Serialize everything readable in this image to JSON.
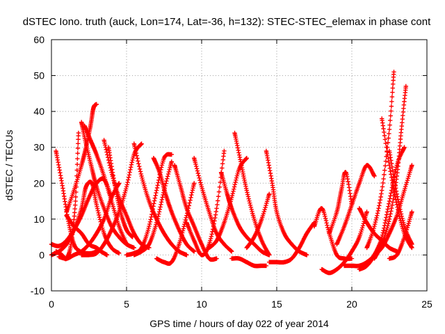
{
  "chart_data": {
    "type": "scatter",
    "title": "dSTEC Iono. truth (auck, Lon=174, Lat=-36, h=132): STEC-STEC_elemax in phase cont",
    "xlabel": "GPS time / hours of day 022 of year 2014",
    "ylabel": "dSTEC  / TECUs",
    "xlim": [
      0,
      25
    ],
    "ylim": [
      -10,
      60
    ],
    "xticks": [
      "0",
      "5",
      "10",
      "15",
      "20",
      "25"
    ],
    "yticks": [
      "-10",
      "0",
      "10",
      "20",
      "30",
      "40",
      "50",
      "60"
    ],
    "grid": true,
    "legend": "none",
    "marker": "plus",
    "series_color": "#ff0000",
    "series": [
      {
        "x": [
          0.0,
          0.5,
          1.0,
          1.5,
          2.0,
          2.5,
          3.0,
          3.5,
          4.0
        ],
        "y": [
          3,
          2.5,
          4,
          7,
          11,
          16,
          20,
          21,
          16
        ]
      },
      {
        "x": [
          0.3,
          0.7,
          1.1,
          1.5,
          1.9,
          2.3,
          2.7,
          3.0
        ],
        "y": [
          29,
          20,
          10,
          3,
          1,
          0.5,
          0.5,
          1
        ]
      },
      {
        "x": [
          0.0,
          0.5,
          1.0,
          1.5,
          2.0,
          2.3,
          2.7,
          3.0,
          3.5,
          4.0,
          4.5
        ],
        "y": [
          0,
          1,
          3,
          7,
          13,
          19,
          20,
          14,
          6,
          2,
          0.5
        ]
      },
      {
        "x": [
          0.3,
          0.7,
          1.0,
          1.3,
          1.6,
          1.8
        ],
        "y": [
          1,
          0,
          -1,
          3,
          15,
          34
        ]
      },
      {
        "x": [
          0.5,
          1.0,
          1.5,
          2.0,
          2.5,
          3.0,
          3.5,
          4.0,
          4.5
        ],
        "y": [
          -0.5,
          -1,
          0,
          1,
          3,
          6,
          10,
          16,
          20
        ]
      },
      {
        "x": [
          2.0,
          2.3,
          2.7,
          3.0,
          3.5,
          4.0,
          4.5,
          5.0,
          5.5
        ],
        "y": [
          37,
          31,
          24,
          19,
          13,
          8,
          5,
          3,
          2
        ]
      },
      {
        "x": [
          1.0,
          1.5,
          2.0,
          2.3,
          2.6,
          2.8,
          3.0
        ],
        "y": [
          12,
          18,
          25,
          30,
          36,
          41,
          42
        ]
      },
      {
        "x": [
          2.2,
          2.6,
          3.0,
          3.5,
          4.0,
          4.5,
          5.0
        ],
        "y": [
          36,
          32,
          28,
          22,
          15,
          8,
          3
        ]
      },
      {
        "x": [
          1.0,
          1.5,
          2.0,
          2.5,
          3.0,
          3.3,
          3.7
        ],
        "y": [
          11,
          8,
          6,
          3,
          2,
          1,
          0
        ]
      },
      {
        "x": [
          3.5,
          4.0,
          4.5,
          5.0,
          5.5,
          6.0,
          6.5
        ],
        "y": [
          32,
          23,
          16,
          11,
          6,
          3,
          2
        ]
      },
      {
        "x": [
          3.8,
          4.2,
          4.6,
          5.0,
          5.4
        ],
        "y": [
          30,
          20,
          12,
          7,
          5
        ]
      },
      {
        "x": [
          2.0,
          2.5,
          3.0,
          3.5,
          4.0,
          4.5,
          5.0,
          5.5,
          6.0
        ],
        "y": [
          0,
          0,
          0.5,
          3,
          7,
          12,
          19,
          28,
          31
        ]
      },
      {
        "x": [
          5.5,
          6.0,
          6.5,
          7.0,
          7.5,
          8.0,
          8.5,
          9.0
        ],
        "y": [
          31,
          22,
          15,
          10,
          6,
          3,
          1,
          0
        ]
      },
      {
        "x": [
          5.0,
          5.5,
          6.0,
          6.5,
          7.0,
          7.5,
          8.0
        ],
        "y": [
          0,
          0.5,
          2,
          8,
          18,
          27,
          28
        ]
      },
      {
        "x": [
          6.8,
          7.2,
          7.6,
          8.0,
          8.5,
          9.0,
          9.5
        ],
        "y": [
          27,
          23,
          17,
          12,
          7,
          3,
          1
        ]
      },
      {
        "x": [
          5.5,
          6.0,
          6.5,
          7.0,
          7.5,
          8.0
        ],
        "y": [
          0,
          1,
          3,
          9,
          18,
          26
        ]
      },
      {
        "x": [
          8.2,
          8.6,
          9.0,
          9.5,
          10.0,
          10.5,
          11.0
        ],
        "y": [
          25,
          19,
          13,
          8,
          3,
          -1,
          -1
        ]
      },
      {
        "x": [
          7.0,
          7.5,
          8.0,
          8.5,
          9.0,
          9.5
        ],
        "y": [
          -1,
          -2,
          -2,
          3,
          11,
          20
        ]
      },
      {
        "x": [
          9.5,
          10.0,
          10.5,
          11.0,
          11.5,
          12.0
        ],
        "y": [
          27,
          19,
          12,
          6,
          3,
          1
        ]
      },
      {
        "x": [
          9.0,
          9.5,
          10.0,
          10.5,
          11.0,
          11.5
        ],
        "y": [
          9,
          4,
          0,
          3,
          13,
          29
        ]
      },
      {
        "x": [
          11.3,
          11.7,
          12.0,
          12.5,
          13.0,
          13.5,
          14.0,
          14.5
        ],
        "y": [
          23,
          17,
          13,
          8,
          5,
          3,
          1,
          0
        ]
      },
      {
        "x": [
          10.5,
          11.0,
          11.5,
          12.0,
          12.5,
          13.0
        ],
        "y": [
          2,
          4,
          9,
          16,
          24,
          27
        ]
      },
      {
        "x": [
          12.2,
          12.6,
          13.0,
          13.5,
          14.0,
          14.5
        ],
        "y": [
          34,
          26,
          18,
          10,
          4,
          0
        ]
      },
      {
        "x": [
          12.0,
          12.5,
          13.0,
          13.5,
          14.0,
          14.3
        ],
        "y": [
          -1,
          -1,
          -2,
          -3,
          -3,
          -3
        ]
      },
      {
        "x": [
          13.0,
          13.5,
          14.0,
          14.5
        ],
        "y": [
          2,
          5,
          10,
          17
        ]
      },
      {
        "x": [
          14.3,
          14.7,
          15.0,
          15.5,
          16.0,
          16.5,
          17.0
        ],
        "y": [
          29,
          20,
          12,
          6,
          3,
          1,
          0
        ]
      },
      {
        "x": [
          14.5,
          15.0,
          15.5,
          16.0,
          16.5,
          17.0,
          17.5
        ],
        "y": [
          -2,
          -2,
          -2,
          -1,
          2,
          6,
          9
        ]
      },
      {
        "x": [
          17.5,
          18.0,
          18.5,
          19.0,
          19.5,
          20.0
        ],
        "y": [
          8,
          13,
          6,
          0,
          -1,
          -1
        ]
      },
      {
        "x": [
          18.0,
          18.5,
          19.0,
          19.5,
          20.0,
          20.5,
          21.0
        ],
        "y": [
          -4,
          -5,
          -4,
          -2,
          1,
          5,
          12
        ]
      },
      {
        "x": [
          18.5,
          19.0,
          19.3,
          19.6,
          20.0
        ],
        "y": [
          6,
          12,
          18,
          23,
          14
        ]
      },
      {
        "x": [
          19.0,
          19.5,
          20.0,
          20.5,
          21.0,
          21.5
        ],
        "y": [
          3,
          8,
          14,
          20,
          25,
          22
        ]
      },
      {
        "x": [
          19.5,
          20.0,
          20.5,
          21.0,
          21.5,
          22.0
        ],
        "y": [
          -3,
          -3,
          -3,
          -2,
          0,
          4
        ]
      },
      {
        "x": [
          20.5,
          21.0,
          21.5,
          22.0,
          22.5,
          23.0,
          23.5
        ],
        "y": [
          -4,
          -3,
          0,
          5,
          15,
          25,
          30
        ]
      },
      {
        "x": [
          21.0,
          21.5,
          22.0,
          22.5,
          22.8
        ],
        "y": [
          2,
          8,
          18,
          35,
          51
        ]
      },
      {
        "x": [
          21.5,
          22.0,
          22.5,
          23.0,
          23.3,
          23.6
        ],
        "y": [
          -1,
          3,
          10,
          22,
          35,
          47
        ]
      },
      {
        "x": [
          20.5,
          21.0,
          21.5,
          22.0,
          22.5,
          23.0
        ],
        "y": [
          13,
          9,
          6,
          4,
          2,
          1
        ]
      },
      {
        "x": [
          22.0,
          22.5,
          23.0,
          23.5,
          24.0
        ],
        "y": [
          38,
          25,
          14,
          6,
          2
        ]
      },
      {
        "x": [
          22.5,
          23.0,
          23.5,
          24.0
        ],
        "y": [
          29,
          17,
          8,
          3
        ]
      },
      {
        "x": [
          21.5,
          22.0,
          22.5,
          23.0,
          23.5,
          24.0
        ],
        "y": [
          0,
          2,
          6,
          11,
          18,
          25
        ]
      },
      {
        "x": [
          22.5,
          23.0,
          23.5,
          24.0
        ],
        "y": [
          -1,
          0,
          5,
          12
        ]
      }
    ]
  }
}
